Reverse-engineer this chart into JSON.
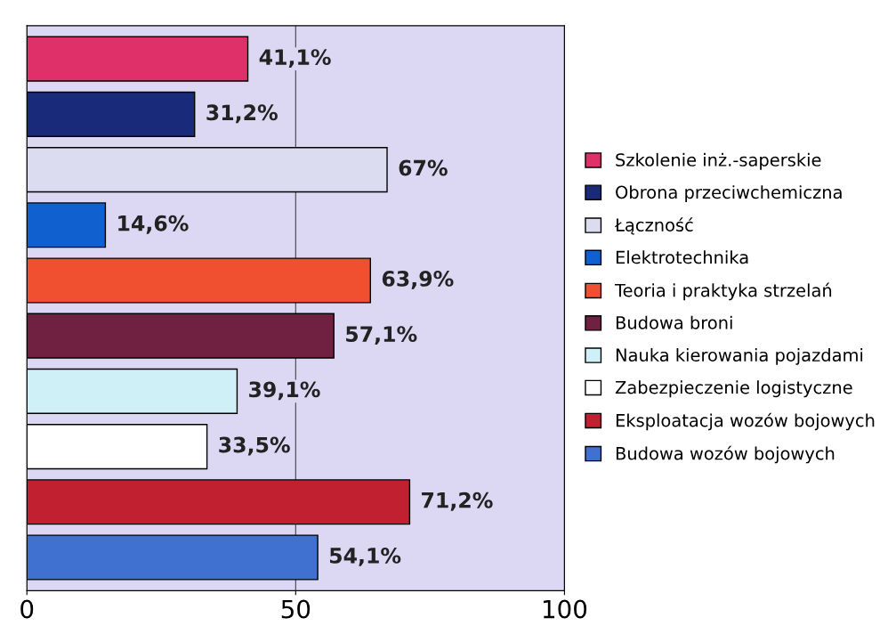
{
  "chart_data": {
    "type": "bar",
    "orientation": "horizontal",
    "categories": [
      null,
      null,
      null,
      null,
      null,
      null,
      null,
      null,
      null,
      null
    ],
    "series": [
      {
        "name": "Szkolenie inż.-saperskie",
        "color": "#e0306a",
        "values": [
          41.1,
          null,
          null,
          null,
          null,
          null,
          null,
          null,
          null,
          null
        ],
        "value_labels": [
          "41,1%",
          null,
          null,
          null,
          null,
          null,
          null,
          null,
          null,
          null
        ]
      },
      {
        "name": "Obrona przeciwchemiczna",
        "color": "#1a2a7a",
        "values": [
          null,
          31.2,
          null,
          null,
          null,
          null,
          null,
          null,
          null,
          null
        ],
        "value_labels": [
          null,
          "31,2%",
          null,
          null,
          null,
          null,
          null,
          null,
          null,
          null
        ]
      },
      {
        "name": "Łączność",
        "color": "#dcdcf0",
        "values": [
          null,
          null,
          67,
          null,
          null,
          null,
          null,
          null,
          null,
          null
        ],
        "value_labels": [
          null,
          null,
          "67%",
          null,
          null,
          null,
          null,
          null,
          null,
          null
        ]
      },
      {
        "name": "Elektrotechnika",
        "color": "#1060d0",
        "values": [
          null,
          null,
          null,
          14.6,
          null,
          null,
          null,
          null,
          null,
          null
        ],
        "value_labels": [
          null,
          null,
          null,
          "14,6%",
          null,
          null,
          null,
          null,
          null,
          null
        ]
      },
      {
        "name": "Teoria i praktyka strzelań",
        "color": "#f05030",
        "values": [
          null,
          null,
          null,
          null,
          63.9,
          null,
          null,
          null,
          null,
          null
        ],
        "value_labels": [
          null,
          null,
          null,
          null,
          "63,9%",
          null,
          null,
          null,
          null,
          null
        ]
      },
      {
        "name": "Budowa broni",
        "color": "#702040",
        "values": [
          null,
          null,
          null,
          null,
          null,
          57.1,
          null,
          null,
          null,
          null
        ],
        "value_labels": [
          null,
          null,
          null,
          null,
          null,
          "57,1%",
          null,
          null,
          null,
          null
        ]
      },
      {
        "name": "Nauka kierowania pojazdami",
        "color": "#d0f0f8",
        "values": [
          null,
          null,
          null,
          null,
          null,
          null,
          39.1,
          null,
          null,
          null
        ],
        "value_labels": [
          null,
          null,
          null,
          null,
          null,
          null,
          "39,1%",
          null,
          null,
          null
        ]
      },
      {
        "name": "Zabezpieczenie logistyczne",
        "color": "#ffffff",
        "values": [
          null,
          null,
          null,
          null,
          null,
          null,
          null,
          33.5,
          null,
          null
        ],
        "value_labels": [
          null,
          null,
          null,
          null,
          null,
          null,
          null,
          "33,5%",
          null,
          null
        ]
      },
      {
        "name": "Eksploatacja wozów bojowych",
        "color": "#c02030",
        "values": [
          null,
          null,
          null,
          null,
          null,
          null,
          null,
          null,
          71.2,
          null
        ],
        "value_labels": [
          null,
          null,
          null,
          null,
          null,
          null,
          null,
          null,
          "71,2%",
          null
        ]
      },
      {
        "name": "Budowa wozów bojowych",
        "color": "#4070d0",
        "values": [
          null,
          null,
          null,
          null,
          null,
          null,
          null,
          null,
          null,
          54.1
        ],
        "value_labels": [
          null,
          null,
          null,
          null,
          null,
          null,
          null,
          null,
          null,
          "54,1%"
        ]
      }
    ],
    "xlim": [
      0,
      100
    ],
    "xticks": [
      0,
      50,
      100
    ],
    "grid": "x",
    "legend": "right"
  }
}
